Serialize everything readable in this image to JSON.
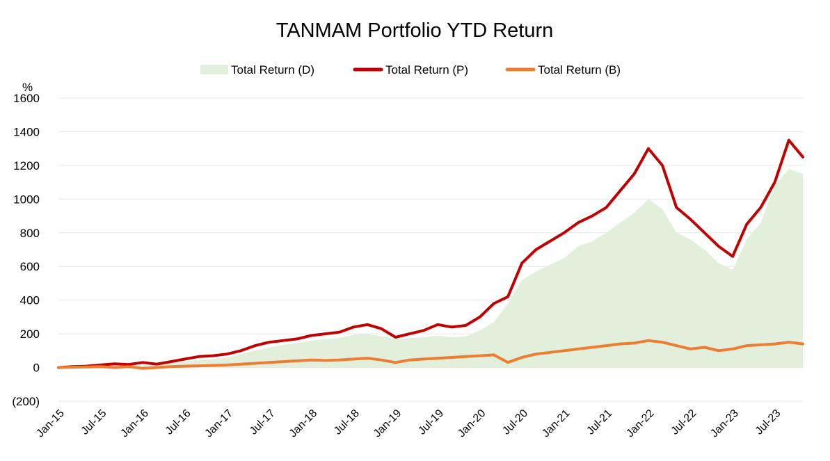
{
  "chart_data": {
    "type": "line",
    "title": "TANMAM Portfolio YTD Return",
    "ylabel": "%",
    "xlabel": "",
    "ylim": [
      -200,
      1600
    ],
    "y_ticks": [
      {
        "value": 1600,
        "label": "1600"
      },
      {
        "value": 1400,
        "label": "1400"
      },
      {
        "value": 1200,
        "label": "1200"
      },
      {
        "value": 1000,
        "label": "1000"
      },
      {
        "value": 800,
        "label": "800"
      },
      {
        "value": 600,
        "label": "600"
      },
      {
        "value": 400,
        "label": "400"
      },
      {
        "value": 200,
        "label": "200"
      },
      {
        "value": 0,
        "label": "0"
      },
      {
        "value": -200,
        "label": "(200)",
        "color": "#ff0000"
      }
    ],
    "grid": true,
    "legend_position": "top",
    "x_ticks": [
      "Jan-15",
      "Jul-15",
      "Jan-16",
      "Jul-16",
      "Jan-17",
      "Jul-17",
      "Jan-18",
      "Jul-18",
      "Jan-19",
      "Jul-19",
      "Jan-20",
      "Jul-20",
      "Jan-21",
      "Jul-21",
      "Jan-22",
      "Jul-22",
      "Jan-23",
      "Jul-23"
    ],
    "x": [
      "Jan-15",
      "Mar-15",
      "May-15",
      "Jul-15",
      "Sep-15",
      "Nov-15",
      "Jan-16",
      "Mar-16",
      "May-16",
      "Jul-16",
      "Sep-16",
      "Nov-16",
      "Jan-17",
      "Mar-17",
      "May-17",
      "Jul-17",
      "Sep-17",
      "Nov-17",
      "Jan-18",
      "Mar-18",
      "May-18",
      "Jul-18",
      "Sep-18",
      "Nov-18",
      "Jan-19",
      "Mar-19",
      "May-19",
      "Jul-19",
      "Sep-19",
      "Nov-19",
      "Jan-20",
      "Mar-20",
      "May-20",
      "Jul-20",
      "Sep-20",
      "Nov-20",
      "Jan-21",
      "Mar-21",
      "May-21",
      "Jul-21",
      "Sep-21",
      "Nov-21",
      "Jan-22",
      "Mar-22",
      "May-22",
      "Jul-22",
      "Sep-22",
      "Nov-22",
      "Jan-23",
      "Mar-23",
      "May-23",
      "Jul-23",
      "Sep-23",
      "Nov-23"
    ],
    "series": [
      {
        "name": "Total Return (D)",
        "style": "area",
        "color": "#e2efda",
        "values": [
          0,
          3,
          5,
          8,
          10,
          12,
          15,
          20,
          25,
          35,
          45,
          50,
          60,
          80,
          100,
          120,
          135,
          145,
          160,
          170,
          175,
          195,
          200,
          185,
          170,
          175,
          180,
          190,
          180,
          185,
          220,
          270,
          380,
          520,
          570,
          610,
          650,
          720,
          750,
          800,
          860,
          920,
          1000,
          940,
          800,
          760,
          700,
          620,
          580,
          760,
          860,
          1080,
          1180,
          1150
        ]
      },
      {
        "name": "Total Return (P)",
        "style": "line",
        "color": "#c00000",
        "values": [
          0,
          5,
          8,
          15,
          22,
          18,
          30,
          20,
          35,
          50,
          65,
          70,
          80,
          100,
          130,
          150,
          160,
          170,
          190,
          200,
          210,
          240,
          255,
          230,
          180,
          200,
          220,
          255,
          240,
          250,
          300,
          380,
          420,
          620,
          700,
          750,
          800,
          860,
          900,
          950,
          1050,
          1150,
          1300,
          1200,
          950,
          880,
          800,
          720,
          660,
          850,
          950,
          1100,
          1350,
          1250
        ]
      },
      {
        "name": "Total Return (B)",
        "style": "line",
        "color": "#ed7d31",
        "values": [
          0,
          2,
          3,
          5,
          0,
          5,
          -5,
          0,
          5,
          8,
          10,
          12,
          15,
          20,
          25,
          30,
          35,
          40,
          45,
          42,
          45,
          50,
          55,
          45,
          30,
          45,
          50,
          55,
          60,
          65,
          70,
          75,
          30,
          60,
          80,
          90,
          100,
          110,
          120,
          130,
          140,
          145,
          160,
          150,
          130,
          110,
          120,
          100,
          110,
          130,
          135,
          140,
          150,
          140
        ]
      }
    ]
  }
}
